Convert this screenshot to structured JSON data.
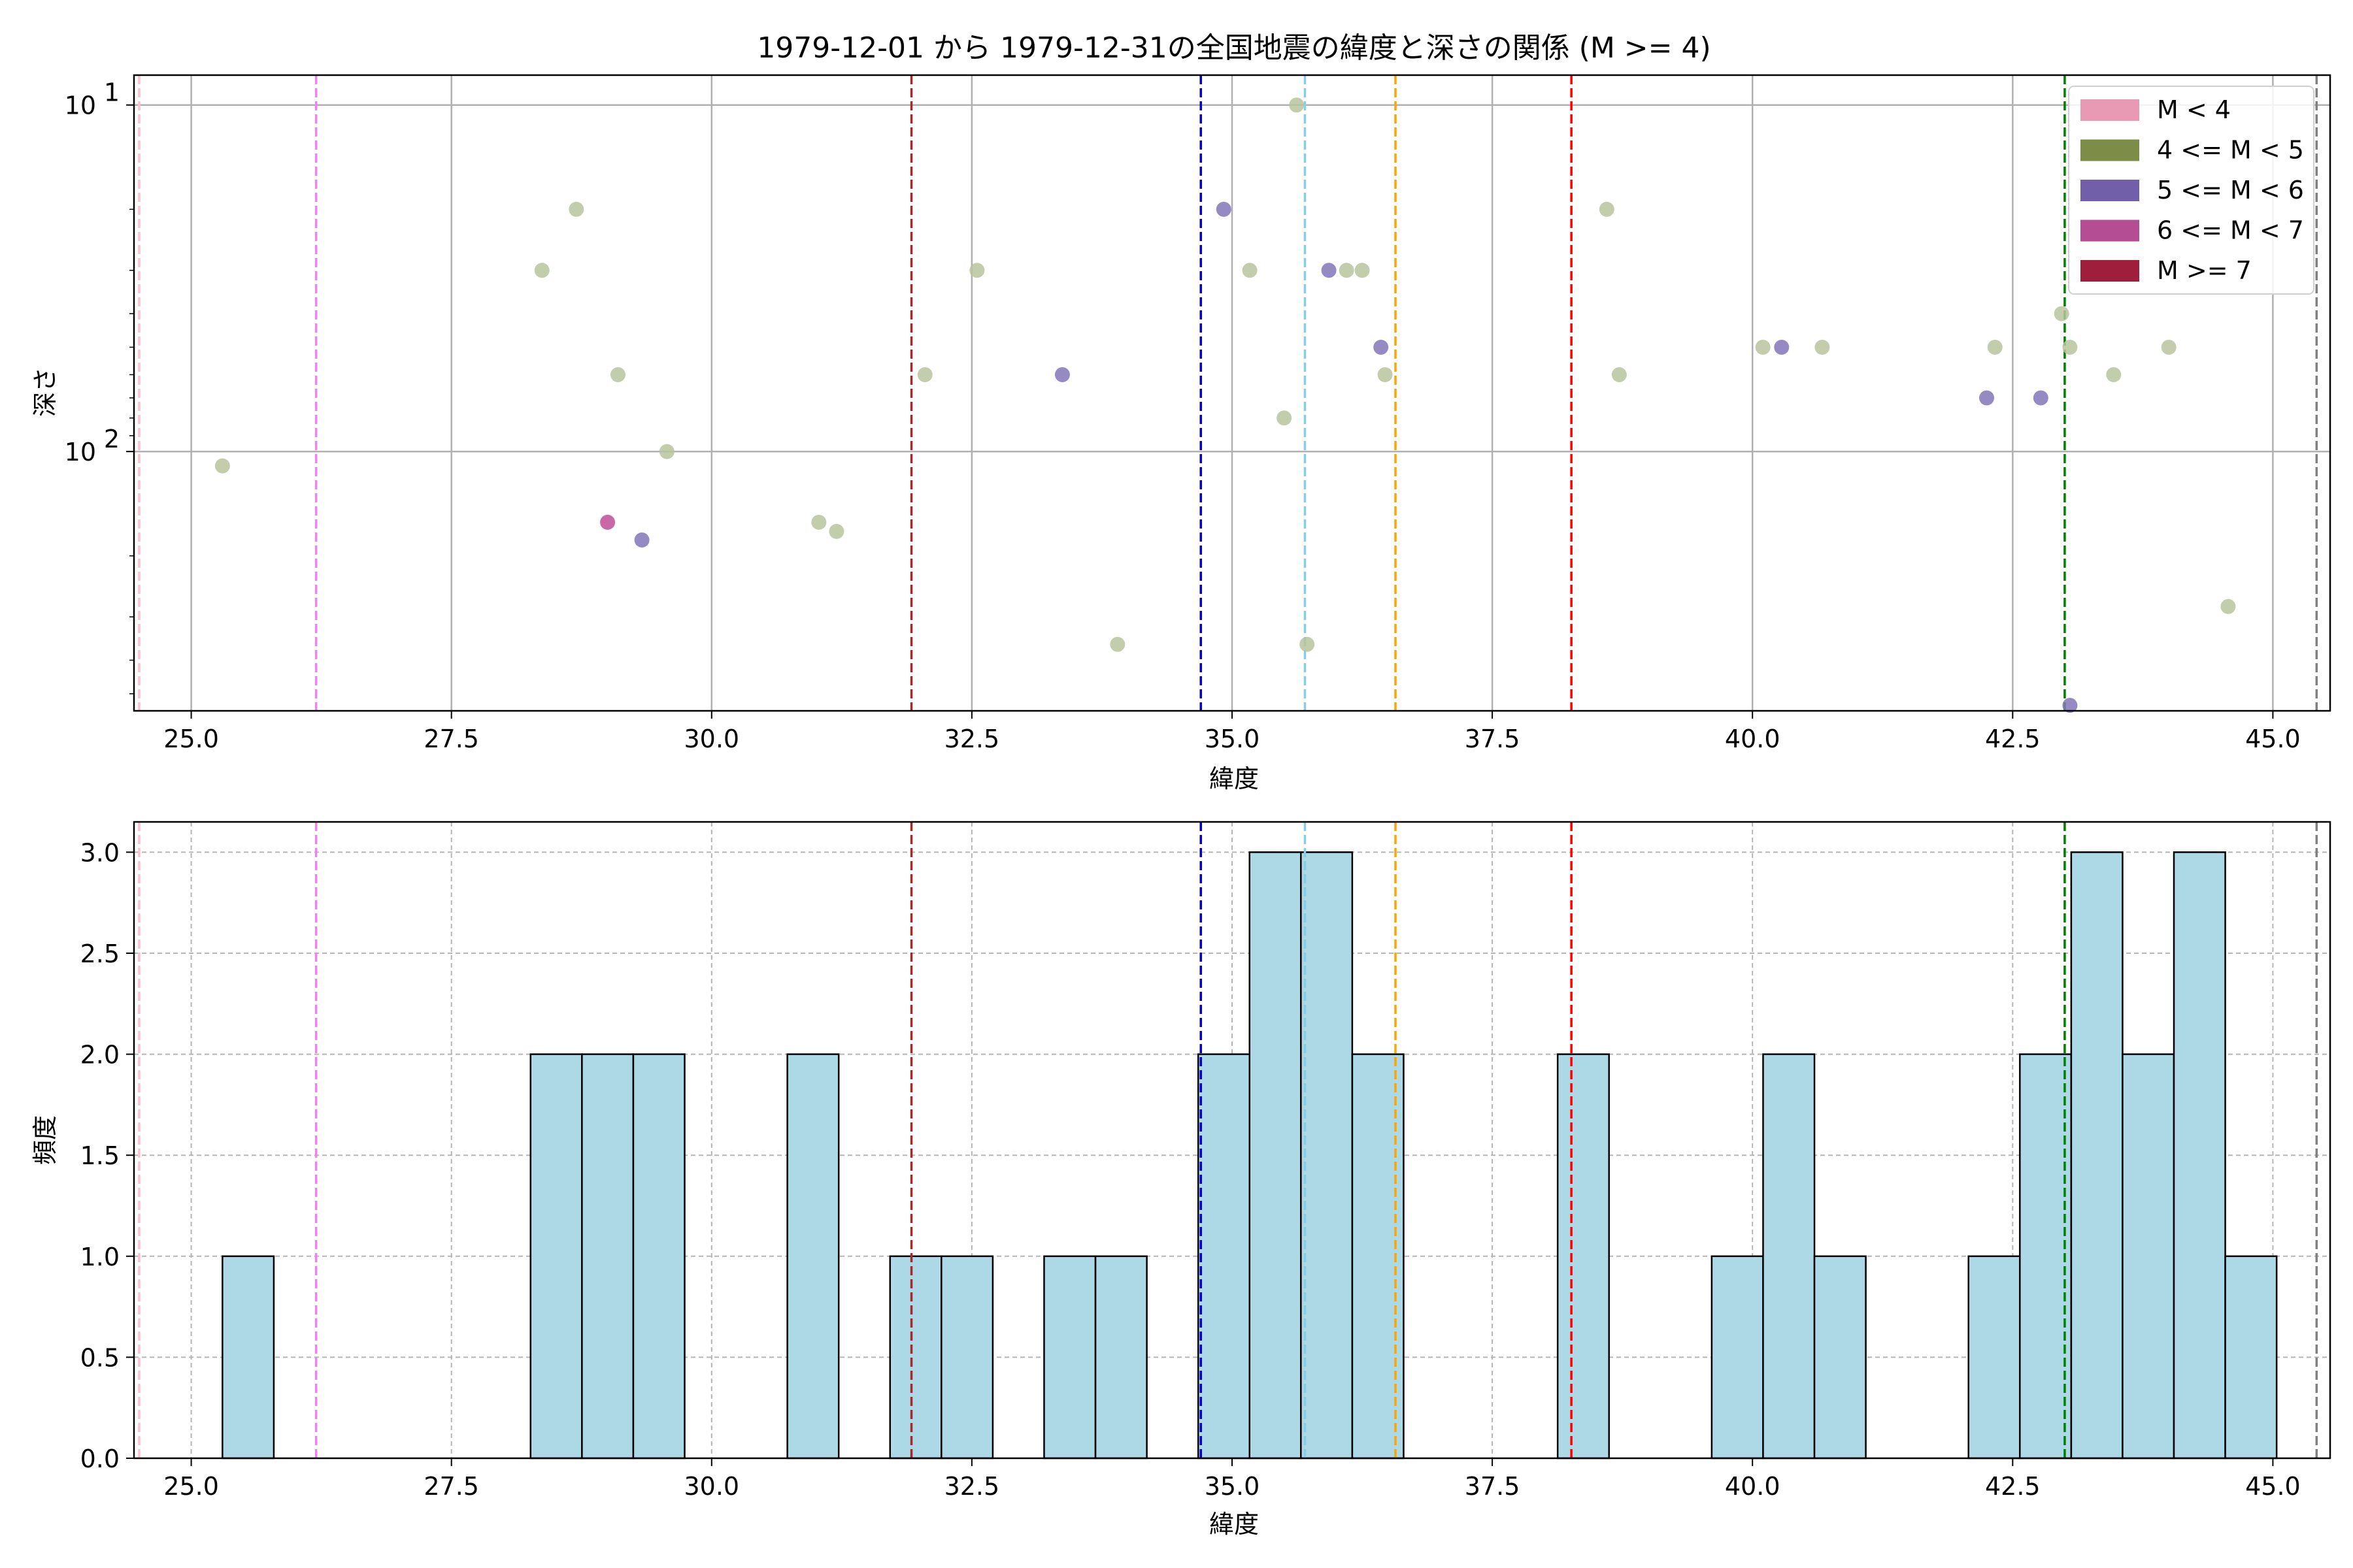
{
  "chart_data": [
    {
      "type": "scatter",
      "title": "1979-12-01 から 1979-12-31の全国地震の緯度と深さの関係 (M >= 4)",
      "xlabel": "緯度",
      "ylabel": "深さ",
      "xlim": [
        24.45,
        45.55
      ],
      "ylim": [
        560,
        8.2
      ],
      "yscale": "log-inverted",
      "grid": true,
      "x_ticks": [
        "25.0",
        "27.5",
        "30.0",
        "32.5",
        "35.0",
        "37.5",
        "40.0",
        "42.5",
        "45.0"
      ],
      "y_ticks": [
        {
          "base": "10",
          "exp": "1",
          "value": 10
        },
        {
          "base": "10",
          "exp": "2",
          "value": 100
        }
      ],
      "legend": {
        "placement": "top-right",
        "entries": [
          {
            "label": "M < 4",
            "color": "#e899b4"
          },
          {
            "label": "4 <= M < 5",
            "color": "#7d8c47"
          },
          {
            "label": "5 <= M < 6",
            "color": "#7160a9"
          },
          {
            "label": "6 <= M < 7",
            "color": "#b54d95"
          },
          {
            "label": "M >= 7",
            "color": "#9e1e3c"
          }
        ]
      },
      "vlines": [
        {
          "x": 24.5,
          "color": "#ffc0cb"
        },
        {
          "x": 26.2,
          "color": "#ee82ee"
        },
        {
          "x": 31.92,
          "color": "#a52a2a"
        },
        {
          "x": 34.7,
          "color": "#0000cd"
        },
        {
          "x": 35.7,
          "color": "#87ceeb"
        },
        {
          "x": 36.57,
          "color": "#ffa500"
        },
        {
          "x": 38.26,
          "color": "#ff0000"
        },
        {
          "x": 43.0,
          "color": "#008000"
        },
        {
          "x": 45.42,
          "color": "#808080"
        }
      ],
      "points": [
        {
          "x": 25.3,
          "y": 110,
          "class": "4<=M<5"
        },
        {
          "x": 28.37,
          "y": 30,
          "class": "4<=M<5"
        },
        {
          "x": 28.7,
          "y": 20,
          "class": "4<=M<5"
        },
        {
          "x": 29.1,
          "y": 60,
          "class": "4<=M<5"
        },
        {
          "x": 29.57,
          "y": 100,
          "class": "4<=M<5"
        },
        {
          "x": 31.03,
          "y": 160,
          "class": "4<=M<5"
        },
        {
          "x": 31.2,
          "y": 170,
          "class": "4<=M<5"
        },
        {
          "x": 32.05,
          "y": 60,
          "class": "4<=M<5"
        },
        {
          "x": 32.55,
          "y": 30,
          "class": "4<=M<5"
        },
        {
          "x": 33.9,
          "y": 360,
          "class": "4<=M<5"
        },
        {
          "x": 35.17,
          "y": 30,
          "class": "4<=M<5"
        },
        {
          "x": 35.5,
          "y": 80,
          "class": "4<=M<5"
        },
        {
          "x": 35.62,
          "y": 10,
          "class": "4<=M<5"
        },
        {
          "x": 35.72,
          "y": 360,
          "class": "4<=M<5"
        },
        {
          "x": 36.1,
          "y": 30,
          "class": "4<=M<5"
        },
        {
          "x": 36.25,
          "y": 30,
          "class": "4<=M<5"
        },
        {
          "x": 36.47,
          "y": 60,
          "class": "4<=M<5"
        },
        {
          "x": 38.6,
          "y": 20,
          "class": "4<=M<5"
        },
        {
          "x": 38.72,
          "y": 60,
          "class": "4<=M<5"
        },
        {
          "x": 40.1,
          "y": 50,
          "class": "4<=M<5"
        },
        {
          "x": 40.67,
          "y": 50,
          "class": "4<=M<5"
        },
        {
          "x": 42.33,
          "y": 50,
          "class": "4<=M<5"
        },
        {
          "x": 42.97,
          "y": 40,
          "class": "4<=M<5"
        },
        {
          "x": 43.05,
          "y": 50,
          "class": "4<=M<5"
        },
        {
          "x": 43.47,
          "y": 60,
          "class": "4<=M<5"
        },
        {
          "x": 44.0,
          "y": 50,
          "class": "4<=M<5"
        },
        {
          "x": 44.57,
          "y": 280,
          "class": "4<=M<5"
        },
        {
          "x": 29.33,
          "y": 180,
          "class": "5<=M<6"
        },
        {
          "x": 33.37,
          "y": 60,
          "class": "5<=M<6"
        },
        {
          "x": 34.92,
          "y": 20,
          "class": "5<=M<6"
        },
        {
          "x": 35.93,
          "y": 30,
          "class": "5<=M<6"
        },
        {
          "x": 36.43,
          "y": 50,
          "class": "5<=M<6"
        },
        {
          "x": 40.28,
          "y": 50,
          "class": "5<=M<6"
        },
        {
          "x": 42.25,
          "y": 70,
          "class": "5<=M<6"
        },
        {
          "x": 42.77,
          "y": 70,
          "class": "5<=M<6"
        },
        {
          "x": 43.05,
          "y": 540,
          "class": "5<=M<6"
        },
        {
          "x": 29.0,
          "y": 160,
          "class": "6<=M<7"
        }
      ],
      "point_colors": {
        "4<=M<5": "#b8c49c",
        "5<=M<6": "#8475b8",
        "6<=M<7": "#bf4d96"
      }
    },
    {
      "type": "bar",
      "xlabel": "緯度",
      "ylabel": "頻度",
      "xlim": [
        24.45,
        45.55
      ],
      "ylim": [
        0,
        3.15
      ],
      "grid": true,
      "bar_color": "#add8e6",
      "x_ticks": [
        "25.0",
        "27.5",
        "30.0",
        "32.5",
        "35.0",
        "37.5",
        "40.0",
        "42.5",
        "45.0"
      ],
      "y_ticks": [
        "0.0",
        "0.5",
        "1.0",
        "1.5",
        "2.0",
        "2.5",
        "3.0"
      ],
      "bin_start": 25.3,
      "bin_width": 0.4934,
      "counts": [
        1,
        0,
        0,
        0,
        0,
        0,
        2,
        2,
        2,
        0,
        0,
        2,
        0,
        1,
        1,
        0,
        1,
        1,
        0,
        2,
        3,
        3,
        2,
        0,
        0,
        0,
        2,
        0,
        0,
        1,
        2,
        1,
        0,
        0,
        1,
        2,
        3,
        2,
        3,
        1
      ],
      "vlines": [
        {
          "x": 24.5,
          "color": "#ffc0cb"
        },
        {
          "x": 26.2,
          "color": "#ee82ee"
        },
        {
          "x": 31.92,
          "color": "#a52a2a"
        },
        {
          "x": 34.7,
          "color": "#0000cd"
        },
        {
          "x": 35.7,
          "color": "#87ceeb"
        },
        {
          "x": 36.57,
          "color": "#ffa500"
        },
        {
          "x": 38.26,
          "color": "#ff0000"
        },
        {
          "x": 43.0,
          "color": "#008000"
        },
        {
          "x": 45.42,
          "color": "#808080"
        }
      ]
    }
  ]
}
